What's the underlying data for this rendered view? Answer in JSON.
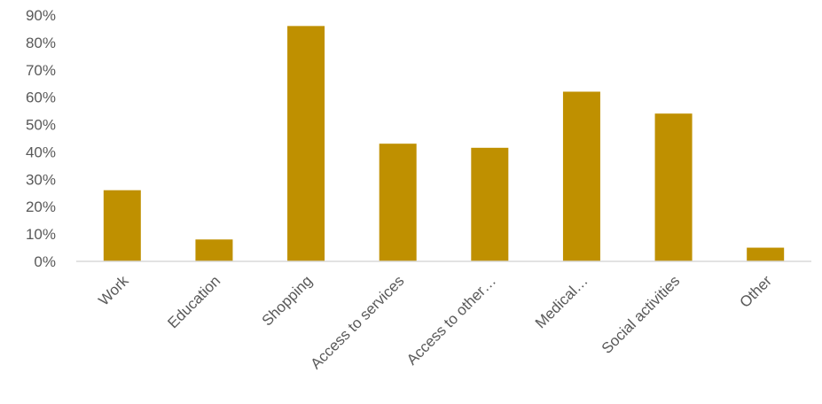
{
  "chart_data": {
    "type": "bar",
    "title": "",
    "xlabel": "",
    "ylabel": "",
    "categories": [
      "Work",
      "Education",
      "Shopping",
      "Access to services",
      "Access to other…",
      "Medical…",
      "Social activities",
      "Other"
    ],
    "values": [
      26,
      8,
      86,
      43,
      41.5,
      62,
      54,
      5
    ],
    "ylim": [
      0,
      90
    ],
    "y_ticks": [
      0,
      10,
      20,
      30,
      40,
      50,
      60,
      70,
      80,
      90
    ],
    "y_tick_labels": [
      "0%",
      "10%",
      "20%",
      "30%",
      "40%",
      "50%",
      "60%",
      "70%",
      "80%",
      "90%"
    ],
    "grid": false,
    "legend": "none",
    "bar_color": "#bf9000",
    "axis_color": "#d9d9d9",
    "text_color": "#595959"
  }
}
